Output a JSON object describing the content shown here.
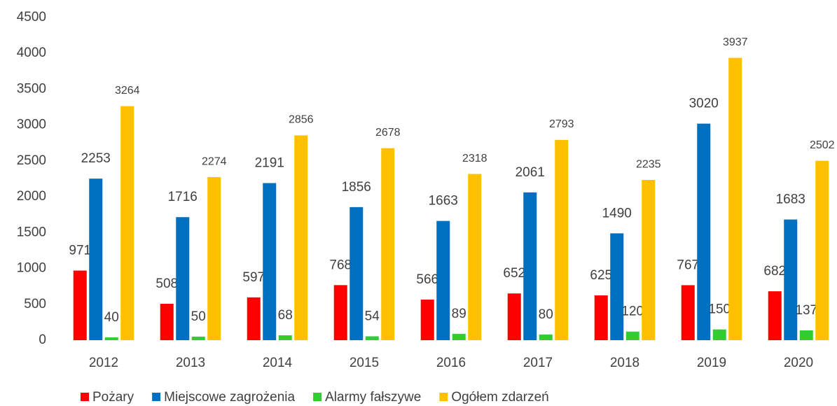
{
  "chart_data": {
    "type": "bar",
    "categories": [
      "2012",
      "2013",
      "2014",
      "2015",
      "2016",
      "2017",
      "2018",
      "2019",
      "2020"
    ],
    "series": [
      {
        "name": "Pożary",
        "color": "#ff0000",
        "values": [
          971,
          508,
          597,
          768,
          566,
          652,
          625,
          767,
          682
        ]
      },
      {
        "name": "Miejscowe zagrożenia",
        "color": "#0070c0",
        "values": [
          2253,
          1716,
          2191,
          1856,
          1663,
          2061,
          1490,
          3020,
          1683
        ]
      },
      {
        "name": "Alarmy fałszywe",
        "color": "#33cc33",
        "values": [
          40,
          50,
          68,
          54,
          89,
          80,
          120,
          150,
          137
        ]
      },
      {
        "name": "Ogółem zdarzeń",
        "color": "#ffc000",
        "values": [
          3264,
          2274,
          2856,
          2678,
          2318,
          2793,
          2235,
          3937,
          2502
        ]
      }
    ],
    "ylim": [
      0,
      4500
    ],
    "yticks": [
      0,
      500,
      1000,
      1500,
      2000,
      2500,
      3000,
      3500,
      4000,
      4500
    ],
    "grid": false,
    "legend": "bottom-left"
  }
}
